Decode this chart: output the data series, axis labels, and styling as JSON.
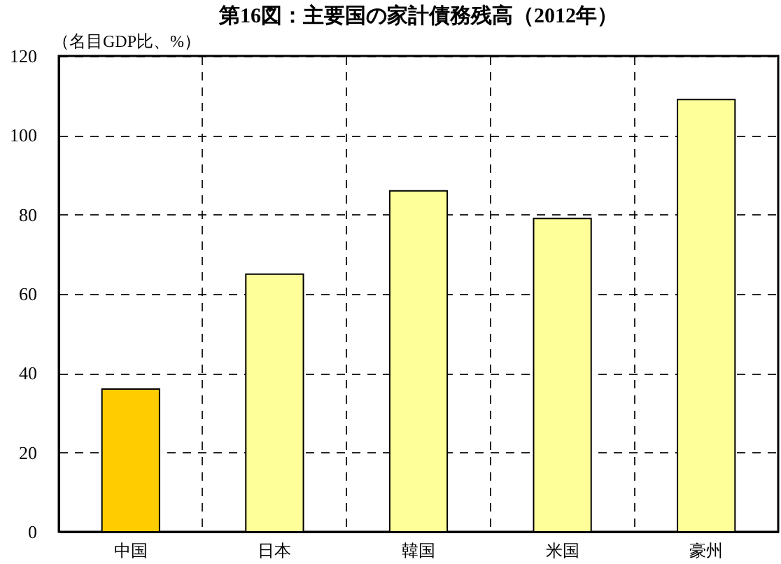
{
  "chart_data": {
    "type": "bar",
    "title": "第16図：主要国の家計債務残高（2012年）",
    "ylabel": "（名目GDP比、%）",
    "categories": [
      "中国",
      "日本",
      "韓国",
      "米国",
      "豪州"
    ],
    "values": [
      36,
      65,
      86,
      79,
      109
    ],
    "colors": [
      "#ffcc00",
      "#ffff99",
      "#ffff99",
      "#ffff99",
      "#ffff99"
    ],
    "ylim": [
      0,
      120
    ],
    "yticks": [
      0,
      20,
      40,
      60,
      80,
      100,
      120
    ],
    "grid": true
  }
}
